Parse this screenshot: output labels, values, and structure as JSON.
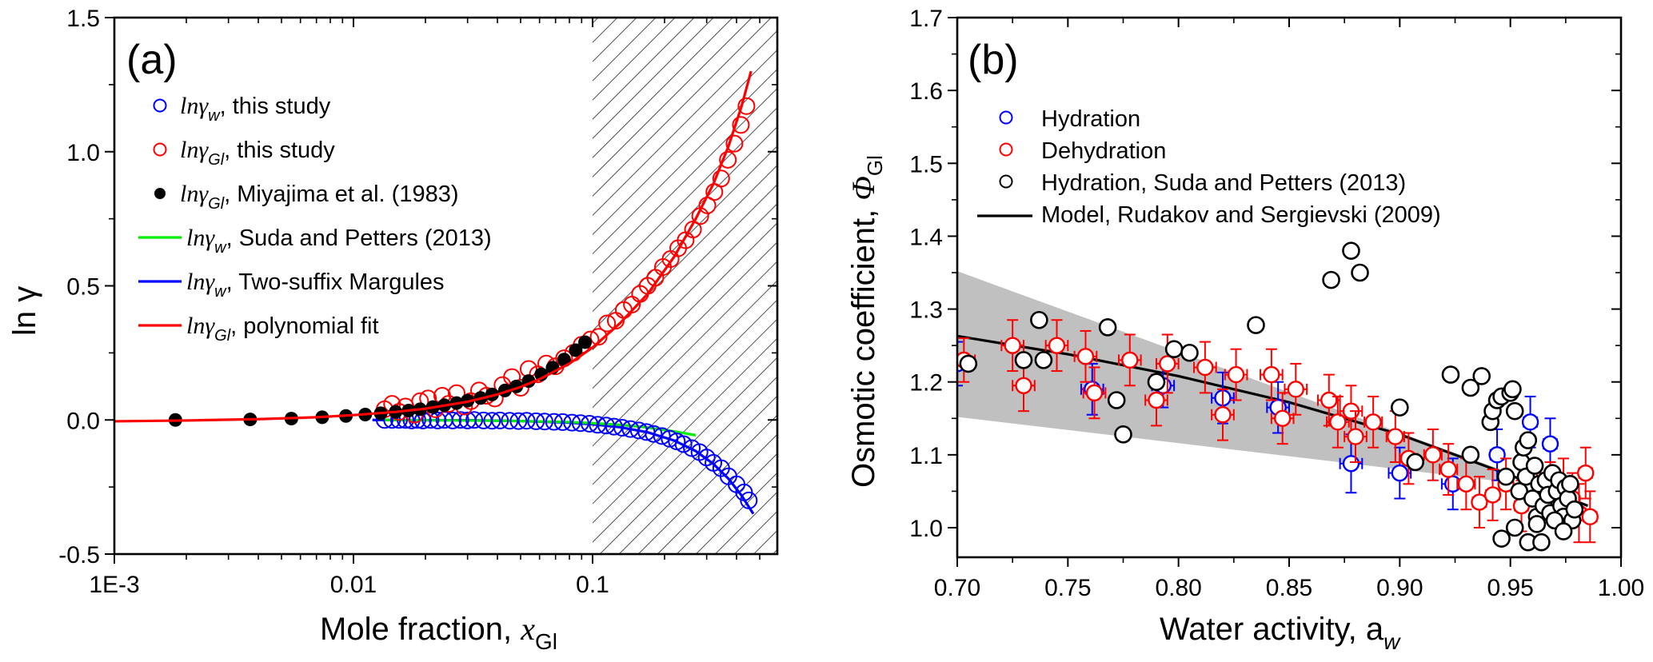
{
  "chart_data": [
    {
      "id": "a",
      "type": "scatter",
      "panel_label": "(a)",
      "xscale": "log",
      "xlabel": "Mole fraction, ",
      "xlabel_var": "x",
      "xlabel_sub": "Gl",
      "ylabel": "ln γ",
      "xlim": [
        0.001,
        0.593
      ],
      "ylim": [
        -0.5,
        1.5
      ],
      "xticks": [
        {
          "v": 0.001,
          "label": "1E-3"
        },
        {
          "v": 0.01,
          "label": "0.01"
        },
        {
          "v": 0.1,
          "label": "0.1"
        }
      ],
      "yticks": [
        {
          "v": -0.5,
          "label": "-0.5"
        },
        {
          "v": 0.0,
          "label": "0.0"
        },
        {
          "v": 0.5,
          "label": "0.5"
        },
        {
          "v": 1.0,
          "label": "1.0"
        },
        {
          "v": 1.5,
          "label": "1.5"
        }
      ],
      "hatched_region": {
        "x_from": 0.1,
        "x_to": 0.593
      },
      "legend": {
        "position": "top-left",
        "entries": [
          {
            "marker": "open-circle",
            "color": "#0000ff",
            "math": "lnγ",
            "sub": "w",
            "text": ", this study"
          },
          {
            "marker": "open-circle",
            "color": "#ff0000",
            "math": "lnγ",
            "sub": "Gl",
            "text": ", this study"
          },
          {
            "marker": "filled-circle",
            "color": "#000000",
            "math": "lnγ",
            "sub": "Gl",
            "text": ", Miyajima et al. (1983)"
          },
          {
            "marker": "line",
            "color": "#00ee00",
            "math": "lnγ",
            "sub": "w",
            "text": ", Suda and Petters (2013)"
          },
          {
            "marker": "line",
            "color": "#0000ff",
            "math": "lnγ",
            "sub": "w",
            "text": ", Two-suffix Margules"
          },
          {
            "marker": "line",
            "color": "#ff0000",
            "math": "lnγ",
            "sub": "Gl",
            "text": ", polynomial fit"
          }
        ]
      },
      "series": [
        {
          "name": "lnγw, this study",
          "kind": "open-circle",
          "color": "#0000ff",
          "x": [
            0.0135,
            0.0145,
            0.0155,
            0.0165,
            0.0175,
            0.0185,
            0.0195,
            0.021,
            0.0225,
            0.024,
            0.026,
            0.028,
            0.03,
            0.032,
            0.035,
            0.038,
            0.041,
            0.045,
            0.049,
            0.053,
            0.058,
            0.063,
            0.069,
            0.075,
            0.082,
            0.089,
            0.097,
            0.105,
            0.114,
            0.123,
            0.133,
            0.144,
            0.156,
            0.168,
            0.18,
            0.195,
            0.21,
            0.225,
            0.24,
            0.26,
            0.28,
            0.3,
            0.32,
            0.345,
            0.37,
            0.4,
            0.43,
            0.45
          ],
          "y": [
            0.0,
            0.0,
            0.0,
            0.0,
            -0.002,
            0.0,
            -0.002,
            0.0,
            -0.002,
            0.0,
            -0.002,
            0.0,
            -0.002,
            0.0,
            -0.002,
            -0.003,
            -0.002,
            -0.003,
            -0.004,
            -0.003,
            -0.005,
            -0.006,
            -0.007,
            -0.008,
            -0.01,
            -0.012,
            -0.014,
            -0.018,
            -0.021,
            -0.025,
            -0.029,
            -0.034,
            -0.039,
            -0.045,
            -0.052,
            -0.06,
            -0.07,
            -0.08,
            -0.09,
            -0.105,
            -0.12,
            -0.14,
            -0.16,
            -0.18,
            -0.21,
            -0.24,
            -0.27,
            -0.3
          ]
        },
        {
          "name": "lnγGl, this study",
          "kind": "open-circle",
          "color": "#ff0000",
          "x": [
            0.0135,
            0.0145,
            0.0155,
            0.0165,
            0.018,
            0.019,
            0.0205,
            0.022,
            0.0235,
            0.025,
            0.027,
            0.029,
            0.031,
            0.0335,
            0.036,
            0.039,
            0.042,
            0.046,
            0.05,
            0.054,
            0.059,
            0.064,
            0.07,
            0.076,
            0.083,
            0.09,
            0.098,
            0.106,
            0.115,
            0.125,
            0.135,
            0.146,
            0.158,
            0.17,
            0.183,
            0.197,
            0.212,
            0.228,
            0.245,
            0.263,
            0.282,
            0.302,
            0.323,
            0.345,
            0.368,
            0.392,
            0.417,
            0.44
          ],
          "y": [
            0.04,
            0.06,
            0.03,
            0.05,
            0.02,
            0.07,
            0.08,
            0.04,
            0.09,
            0.06,
            0.1,
            0.05,
            0.07,
            0.11,
            0.09,
            0.08,
            0.13,
            0.16,
            0.12,
            0.19,
            0.17,
            0.21,
            0.2,
            0.23,
            0.25,
            0.28,
            0.3,
            0.31,
            0.36,
            0.37,
            0.41,
            0.43,
            0.47,
            0.5,
            0.53,
            0.57,
            0.6,
            0.64,
            0.67,
            0.71,
            0.76,
            0.8,
            0.85,
            0.9,
            0.97,
            1.03,
            1.1,
            1.17
          ]
        },
        {
          "name": "lnγGl, Miyajima et al. (1983)",
          "kind": "filled-circle",
          "color": "#000000",
          "x": [
            0.0018,
            0.0037,
            0.0055,
            0.0074,
            0.0093,
            0.0112,
            0.013,
            0.015,
            0.017,
            0.019,
            0.0215,
            0.024,
            0.027,
            0.03,
            0.034,
            0.038,
            0.043,
            0.048,
            0.054,
            0.061,
            0.068,
            0.076,
            0.085,
            0.093
          ],
          "y": [
            0.0,
            0.002,
            0.005,
            0.01,
            0.015,
            0.02,
            0.025,
            0.03,
            0.035,
            0.04,
            0.048,
            0.055,
            0.063,
            0.072,
            0.082,
            0.095,
            0.11,
            0.125,
            0.145,
            0.17,
            0.195,
            0.225,
            0.26,
            0.29
          ]
        },
        {
          "name": "lnγw, Suda and Petters (2013)",
          "kind": "line",
          "color": "#00ee00",
          "x": [
            0.0135,
            0.02,
            0.03,
            0.05,
            0.08,
            0.1,
            0.13,
            0.17,
            0.22,
            0.27
          ],
          "y": [
            0.0,
            -0.001,
            -0.002,
            -0.004,
            -0.008,
            -0.012,
            -0.018,
            -0.028,
            -0.043,
            -0.057
          ]
        },
        {
          "name": "lnγw, Two-suffix Margules",
          "kind": "line",
          "color": "#0000ff",
          "x": [
            0.012,
            0.02,
            0.03,
            0.05,
            0.08,
            0.1,
            0.13,
            0.17,
            0.22,
            0.27,
            0.32,
            0.37,
            0.42,
            0.47
          ],
          "y": [
            0.0,
            -0.001,
            -0.001,
            -0.004,
            -0.01,
            -0.016,
            -0.027,
            -0.046,
            -0.077,
            -0.116,
            -0.164,
            -0.219,
            -0.282,
            -0.35
          ]
        },
        {
          "name": "lnγGl, polynomial fit",
          "kind": "line",
          "color": "#ff0000",
          "x": [
            0.001,
            0.002,
            0.004,
            0.007,
            0.01,
            0.015,
            0.02,
            0.03,
            0.04,
            0.05,
            0.06,
            0.08,
            0.1,
            0.13,
            0.17,
            0.22,
            0.27,
            0.32,
            0.37,
            0.42,
            0.46
          ],
          "y": [
            -0.005,
            -0.002,
            0.003,
            0.01,
            0.018,
            0.03,
            0.042,
            0.068,
            0.095,
            0.123,
            0.152,
            0.21,
            0.27,
            0.36,
            0.47,
            0.61,
            0.75,
            0.88,
            1.02,
            1.17,
            1.3
          ]
        }
      ]
    },
    {
      "id": "b",
      "type": "scatter",
      "panel_label": "(b)",
      "xlabel": "Water activity, a",
      "xlabel_sub": "w",
      "ylabel": "Osmotic coefficient, ",
      "ylabel_var": "Φ",
      "ylabel_sub": "Gl",
      "xlim": [
        0.7,
        1.0
      ],
      "ylim": [
        0.96,
        1.7
      ],
      "xticks": [
        {
          "v": 0.7,
          "label": "0.70"
        },
        {
          "v": 0.75,
          "label": "0.75"
        },
        {
          "v": 0.8,
          "label": "0.80"
        },
        {
          "v": 0.85,
          "label": "0.85"
        },
        {
          "v": 0.9,
          "label": "0.90"
        },
        {
          "v": 0.95,
          "label": "0.95"
        },
        {
          "v": 1.0,
          "label": "1.00"
        }
      ],
      "yticks": [
        {
          "v": 1.0,
          "label": "1.0"
        },
        {
          "v": 1.1,
          "label": "1.1"
        },
        {
          "v": 1.2,
          "label": "1.2"
        },
        {
          "v": 1.3,
          "label": "1.3"
        },
        {
          "v": 1.4,
          "label": "1.4"
        },
        {
          "v": 1.5,
          "label": "1.5"
        },
        {
          "v": 1.6,
          "label": "1.6"
        },
        {
          "v": 1.7,
          "label": "1.7"
        }
      ],
      "uncertainty_band": {
        "color": "#c0c0c0",
        "upper": [
          [
            0.7,
            1.352
          ],
          [
            0.95,
            1.075
          ]
        ],
        "lower": [
          [
            0.7,
            1.152
          ],
          [
            0.95,
            1.062
          ]
        ]
      },
      "legend": {
        "position": "top-left",
        "entries": [
          {
            "marker": "open-circle",
            "color": "#0000ff",
            "text": "Hydration"
          },
          {
            "marker": "open-circle",
            "color": "#ff0000",
            "text": "Dehydration"
          },
          {
            "marker": "open-circle",
            "color": "#000000",
            "text": "Hydration, Suda and Petters (2013)"
          },
          {
            "marker": "line",
            "color": "#000000",
            "text": "Model, Rudakov and Sergievski (2009)"
          }
        ]
      },
      "series": [
        {
          "name": "Model, Rudakov and Sergievski (2009)",
          "kind": "line",
          "color": "#000000",
          "x": [
            0.7,
            0.75,
            0.8,
            0.85,
            0.9,
            0.95,
            0.985
          ],
          "y": [
            1.263,
            1.238,
            1.208,
            1.172,
            1.128,
            1.072,
            1.03
          ]
        },
        {
          "name": "Hydration",
          "kind": "open-circle-errorbar",
          "color": "#0000ff",
          "x": [
            0.7,
            0.761,
            0.793,
            0.82,
            0.845,
            0.878,
            0.9,
            0.924,
            0.944,
            0.959,
            0.968,
            0.975
          ],
          "y": [
            1.225,
            1.19,
            1.195,
            1.178,
            1.165,
            1.088,
            1.075,
            1.06,
            1.1,
            1.145,
            1.115,
            1.02
          ],
          "yerr": [
            0.03,
            0.035,
            0.03,
            0.035,
            0.035,
            0.04,
            0.035,
            0.035,
            0.035,
            0.035,
            0.035,
            0.03
          ],
          "xerr": [
            0.005,
            0.005,
            0.005,
            0.005,
            0.005,
            0.005,
            0.005,
            0.005,
            0.003,
            0.003,
            0.003,
            0.003
          ]
        },
        {
          "name": "Dehydration",
          "kind": "open-circle-errorbar",
          "color": "#ff0000",
          "x": [
            0.703,
            0.725,
            0.73,
            0.745,
            0.758,
            0.762,
            0.778,
            0.79,
            0.795,
            0.812,
            0.82,
            0.826,
            0.842,
            0.847,
            0.853,
            0.868,
            0.872,
            0.878,
            0.88,
            0.888,
            0.898,
            0.904,
            0.915,
            0.922,
            0.93,
            0.936,
            0.942,
            0.948,
            0.955,
            0.962,
            0.968,
            0.974,
            0.978,
            0.981,
            0.984,
            0.986
          ],
          "y": [
            1.23,
            1.25,
            1.195,
            1.25,
            1.235,
            1.185,
            1.23,
            1.175,
            1.225,
            1.22,
            1.155,
            1.21,
            1.21,
            1.15,
            1.19,
            1.175,
            1.145,
            1.16,
            1.125,
            1.145,
            1.125,
            1.095,
            1.1,
            1.08,
            1.06,
            1.035,
            1.045,
            1.06,
            1.03,
            1.04,
            1.055,
            1.06,
            1.04,
            1.02,
            1.075,
            1.015
          ],
          "yerr": [
            0.03,
            0.035,
            0.035,
            0.035,
            0.035,
            0.035,
            0.035,
            0.035,
            0.04,
            0.035,
            0.035,
            0.035,
            0.035,
            0.035,
            0.035,
            0.035,
            0.035,
            0.035,
            0.035,
            0.035,
            0.035,
            0.035,
            0.035,
            0.035,
            0.035,
            0.035,
            0.035,
            0.035,
            0.035,
            0.035,
            0.035,
            0.035,
            0.035,
            0.04,
            0.035,
            0.035
          ],
          "xerr": [
            0.005,
            0.005,
            0.005,
            0.005,
            0.005,
            0.005,
            0.005,
            0.005,
            0.005,
            0.005,
            0.005,
            0.005,
            0.005,
            0.005,
            0.005,
            0.005,
            0.005,
            0.005,
            0.005,
            0.004,
            0.004,
            0.004,
            0.004,
            0.004,
            0.004,
            0.003,
            0.003,
            0.003,
            0.003,
            0.003,
            0.003,
            0.003,
            0.003,
            0.003,
            0.003,
            0.003
          ]
        },
        {
          "name": "Hydration, Suda and Petters (2013)",
          "kind": "open-circle",
          "color": "#000000",
          "x": [
            0.705,
            0.73,
            0.737,
            0.739,
            0.768,
            0.772,
            0.775,
            0.79,
            0.798,
            0.805,
            0.835,
            0.869,
            0.878,
            0.882,
            0.9,
            0.907,
            0.923,
            0.932,
            0.937,
            0.932,
            0.941,
            0.942,
            0.944,
            0.946,
            0.948,
            0.95,
            0.951,
            0.952,
            0.954,
            0.955,
            0.956,
            0.957,
            0.958,
            0.96,
            0.961,
            0.962,
            0.963,
            0.965,
            0.966,
            0.967,
            0.968,
            0.969,
            0.971,
            0.972,
            0.973,
            0.974,
            0.975,
            0.976,
            0.977,
            0.978,
            0.979,
            0.946,
            0.952,
            0.958,
            0.962,
            0.964,
            0.97,
            0.974
          ],
          "y": [
            1.225,
            1.23,
            1.285,
            1.23,
            1.275,
            1.175,
            1.128,
            1.2,
            1.245,
            1.24,
            1.278,
            1.34,
            1.38,
            1.35,
            1.165,
            1.09,
            1.21,
            1.192,
            1.208,
            1.1,
            1.145,
            1.16,
            1.175,
            1.18,
            1.07,
            1.185,
            1.19,
            1.16,
            1.05,
            1.09,
            1.11,
            1.07,
            1.12,
            1.04,
            1.085,
            1.015,
            1.06,
            1.03,
            1.065,
            1.045,
            1.02,
            1.075,
            1.05,
            1.065,
            1.03,
            1.015,
            1.055,
            1.04,
            1.06,
            1.01,
            1.025,
            0.985,
            1.0,
            0.98,
            1.005,
            0.98,
            1.01,
            0.995
          ]
        }
      ]
    }
  ]
}
